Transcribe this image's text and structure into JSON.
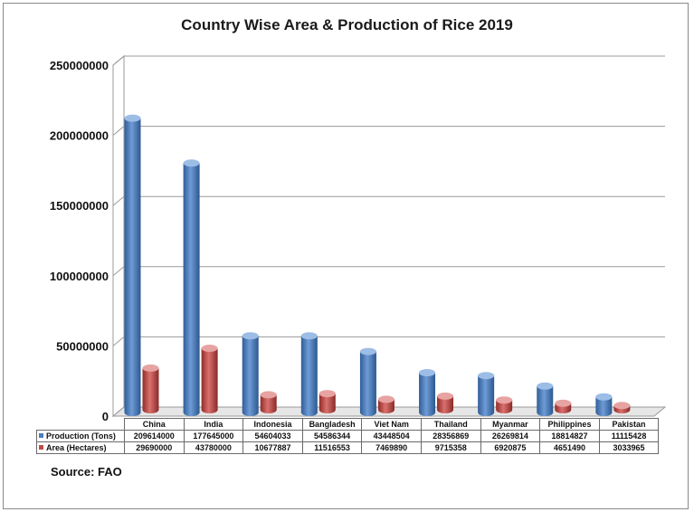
{
  "chart_data": {
    "type": "bar",
    "title": "Country Wise Area & Production of Rice 2019",
    "categories": [
      "China",
      "India",
      "Indonesia",
      "Bangladesh",
      "Viet Nam",
      "Thailand",
      "Myanmar",
      "Philippines",
      "Pakistan"
    ],
    "series": [
      {
        "name": "Production (Tons)",
        "color": "#4a7ebb",
        "values": [
          209614000,
          177645000,
          54604033,
          54586344,
          43448504,
          28356869,
          26269814,
          18814827,
          11115428
        ]
      },
      {
        "name": "Area (Hectares)",
        "color": "#be4b48",
        "values": [
          29690000,
          43780000,
          10677887,
          11516553,
          7469890,
          9715358,
          6920875,
          4651490,
          3033965
        ]
      }
    ],
    "yticks": [
      "0",
      "50000000",
      "100000000",
      "150000000",
      "200000000",
      "250000000"
    ],
    "ylim": [
      0,
      250000000
    ],
    "grid": true,
    "legend": "data-table",
    "source": "Source: FAO"
  }
}
